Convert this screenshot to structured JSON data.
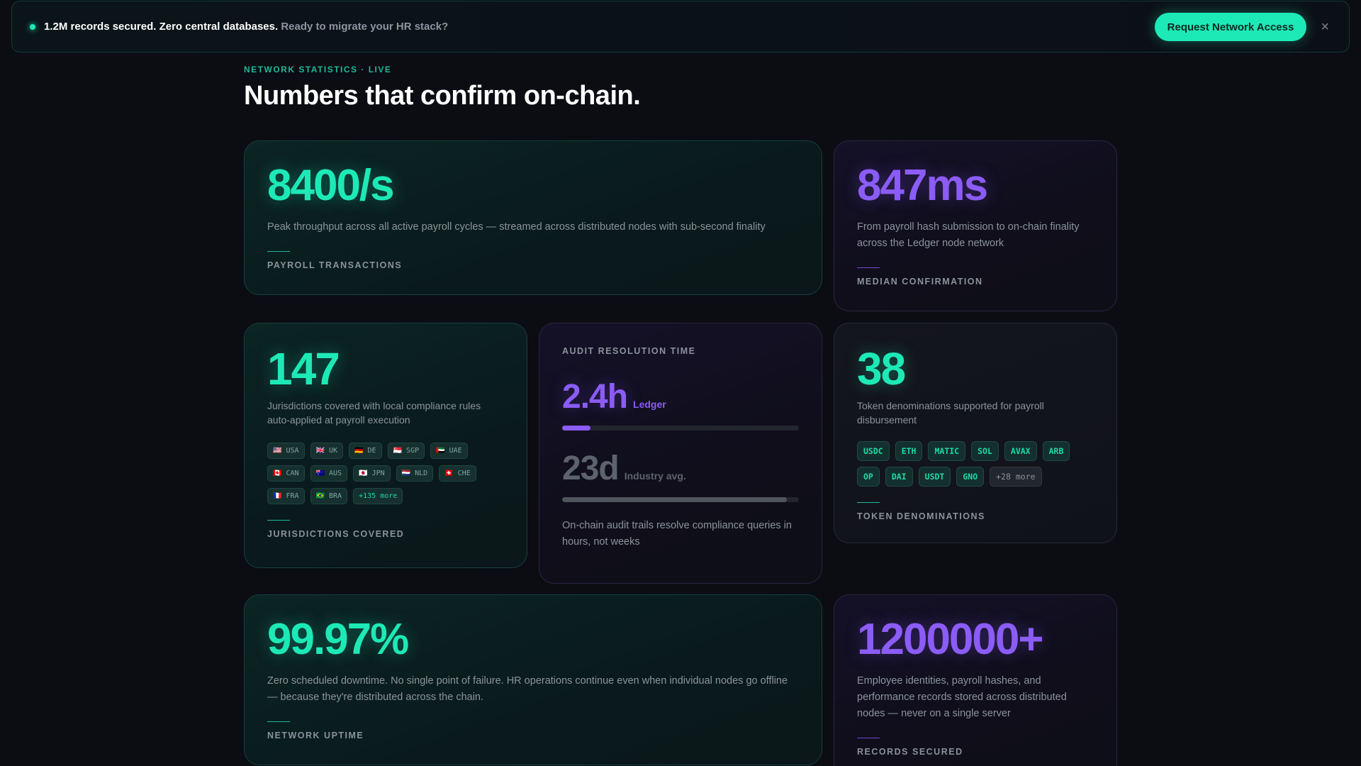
{
  "banner": {
    "strong_text": "1.2M records secured. Zero central databases.",
    "muted_text": "Ready to migrate your HR stack?",
    "cta_label": "Request Network Access",
    "close_glyph": "×"
  },
  "section": {
    "eyebrow": "NETWORK STATISTICS · LIVE",
    "title": "Numbers that confirm on-chain."
  },
  "cards": {
    "throughput": {
      "value": "8400/s",
      "desc": "Peak throughput across all active payroll cycles — streamed across distributed nodes with sub-second finality",
      "caption": "PAYROLL TRANSACTIONS"
    },
    "confirmation": {
      "value": "847ms",
      "desc": "From payroll hash submission to on-chain finality across the Ledger node network",
      "caption": "MEDIAN CONFIRMATION"
    },
    "jurisdictions": {
      "value": "147",
      "desc": "Jurisdictions covered with local compliance rules auto-applied at payroll execution",
      "chips": [
        "🇺🇸 USA",
        "🇬🇧 UK",
        "🇩🇪 DE",
        "🇸🇬 SGP",
        "🇦🇪 UAE",
        "🇨🇦 CAN",
        "🇦🇺 AUS",
        "🇯🇵 JPN",
        "🇳🇱 NLD",
        "🇨🇭 CHE",
        "🇫🇷 FRA",
        "🇧🇷 BRA"
      ],
      "more": "+135 more",
      "caption": "JURISDICTIONS COVERED"
    },
    "audit": {
      "caption": "AUDIT RESOLUTION TIME",
      "ledger_value": "2.4h",
      "ledger_label": "Ledger",
      "ledger_fill": 0.12,
      "industry_value": "23d",
      "industry_label": "Industry avg.",
      "industry_fill": 0.95,
      "desc": "On-chain audit trails resolve compliance queries in hours, not weeks"
    },
    "tokens": {
      "value": "38",
      "desc": "Token denominations supported for payroll disbursement",
      "chips": [
        "USDC",
        "ETH",
        "MATIC",
        "SOL",
        "AVAX",
        "ARB",
        "OP",
        "DAI",
        "USDT",
        "GNO"
      ],
      "more": "+28 more",
      "caption": "TOKEN DENOMINATIONS"
    },
    "uptime": {
      "value": "99.97%",
      "desc": "Zero scheduled downtime. No single point of failure. HR operations continue even when individual nodes go offline — because they're distributed across the chain.",
      "caption": "NETWORK UPTIME"
    },
    "records": {
      "value": "1200000+",
      "desc": "Employee identities, payroll hashes, and performance records stored across distributed nodes — never on a single server",
      "caption": "RECORDS SECURED"
    }
  },
  "colors": {
    "accent_teal": "#1de9b6",
    "accent_purple": "#8b5cf6",
    "background": "#0b0d13"
  }
}
